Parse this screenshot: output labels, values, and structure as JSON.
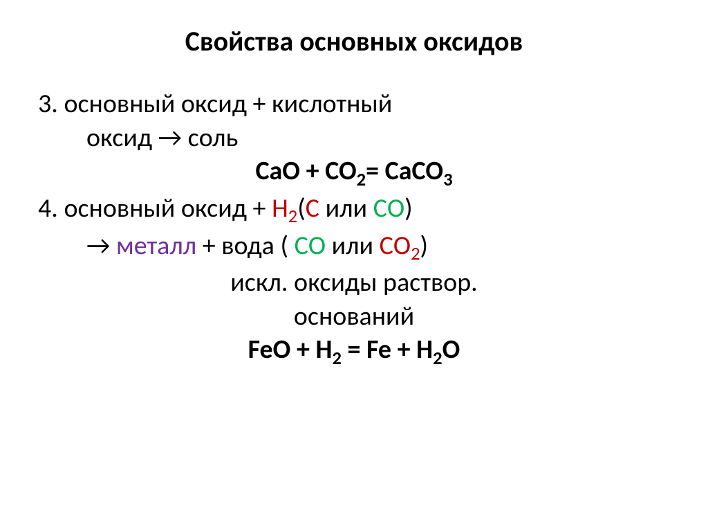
{
  "title": "Свойства основных оксидов",
  "line3a": "3. основный оксид + кислотный",
  "line3b": "оксид",
  "line3c": " соль",
  "eq1_p1": "CaO + CO",
  "eq1_p2": "2",
  "eq1_p3": "= CaCO",
  "eq1_p4": "3",
  "line4a": "4. основный оксид + ",
  "line4_h2_a": "H",
  "line4_h2_b": "2",
  "line4_paren": "(",
  "line4_c": "С",
  "line4_or1": " или ",
  "line4_co": "СО",
  "line4_close": ")",
  "line4b_arrow_space": " ",
  "line4b_metal": "металл",
  "line4b_water": " + вода ( ",
  "line4b_co": "СО",
  "line4b_or2": " или ",
  "line4b_co2a": "СО",
  "line4b_co2b": "2",
  "line4b_end": ")",
  "line_iskl": "искл. оксиды  раствор.",
  "line_osn": "оснований",
  "eq2_p1": "FeO + H",
  "eq2_p2": "2",
  "eq2_p3": " = Fe + H",
  "eq2_p4": "2",
  "eq2_p5": "O",
  "arrow": "→",
  "colors": {
    "red": "#c00000",
    "green": "#00b050",
    "purple": "#7030a0",
    "black": "#000000",
    "bg": "#ffffff"
  },
  "fonts": {
    "title_size": 40,
    "body_size": 38
  }
}
